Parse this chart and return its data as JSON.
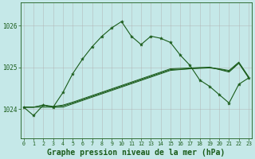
{
  "background_color": "#c5e8e8",
  "grid_color": "#b0b0b0",
  "line_color": "#1a5c1a",
  "title": "Graphe pression niveau de la mer (hPa)",
  "x_ticks": [
    0,
    1,
    2,
    3,
    4,
    5,
    6,
    7,
    8,
    9,
    10,
    11,
    12,
    13,
    14,
    15,
    16,
    17,
    18,
    19,
    20,
    21,
    22,
    23
  ],
  "y_ticks": [
    1024,
    1025,
    1026
  ],
  "ylim": [
    1023.3,
    1026.55
  ],
  "xlim": [
    -0.3,
    23.3
  ],
  "main_series": [
    1024.05,
    1023.85,
    1024.1,
    1024.05,
    1024.4,
    1024.85,
    1025.2,
    1025.5,
    1025.75,
    1025.95,
    1026.1,
    1025.75,
    1025.55,
    1025.75,
    1025.7,
    1025.6,
    1025.3,
    1025.05,
    1024.7,
    1024.55,
    1024.35,
    1024.15,
    1024.6,
    1024.75
  ],
  "flat1": [
    1024.05,
    1024.05,
    1024.05,
    1024.05,
    1024.05,
    1024.13,
    1024.21,
    1024.29,
    1024.37,
    1024.45,
    1024.53,
    1024.61,
    1024.69,
    1024.77,
    1024.85,
    1024.93,
    1024.95,
    1024.97,
    1024.99,
    1025.01,
    1024.95,
    1024.89,
    1025.1,
    1024.75
  ],
  "flat2": [
    1024.05,
    1024.05,
    1024.1,
    1024.07,
    1024.1,
    1024.17,
    1024.25,
    1024.33,
    1024.41,
    1024.49,
    1024.57,
    1024.65,
    1024.73,
    1024.81,
    1024.89,
    1024.97,
    1024.98,
    1024.99,
    1025.0,
    1025.0,
    1024.97,
    1024.93,
    1025.13,
    1024.78
  ],
  "flat3": [
    1024.05,
    1024.05,
    1024.1,
    1024.05,
    1024.08,
    1024.15,
    1024.23,
    1024.31,
    1024.39,
    1024.47,
    1024.55,
    1024.63,
    1024.71,
    1024.79,
    1024.87,
    1024.95,
    1024.96,
    1024.97,
    1024.98,
    1024.99,
    1024.96,
    1024.91,
    1025.11,
    1024.76
  ]
}
